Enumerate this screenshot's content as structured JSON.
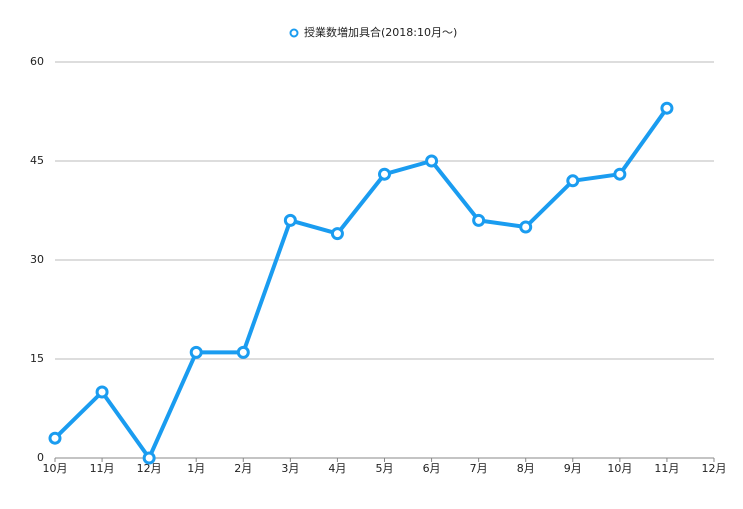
{
  "chart_data": {
    "type": "line",
    "categories": [
      "10月",
      "11月",
      "12月",
      "1月",
      "2月",
      "3月",
      "4月",
      "5月",
      "6月",
      "7月",
      "8月",
      "9月",
      "10月",
      "11月",
      "12月"
    ],
    "series": [
      {
        "name": "授業数増加具合(2018:10月〜)",
        "color": "#1a9cf0",
        "values": [
          3,
          10,
          0,
          16,
          16,
          36,
          34,
          43,
          45,
          36,
          35,
          42,
          43,
          53,
          null
        ]
      }
    ],
    "ylim": [
      0,
      60
    ],
    "yticks": [
      0,
      15,
      30,
      45,
      60
    ],
    "grid": true,
    "legend": "top"
  }
}
